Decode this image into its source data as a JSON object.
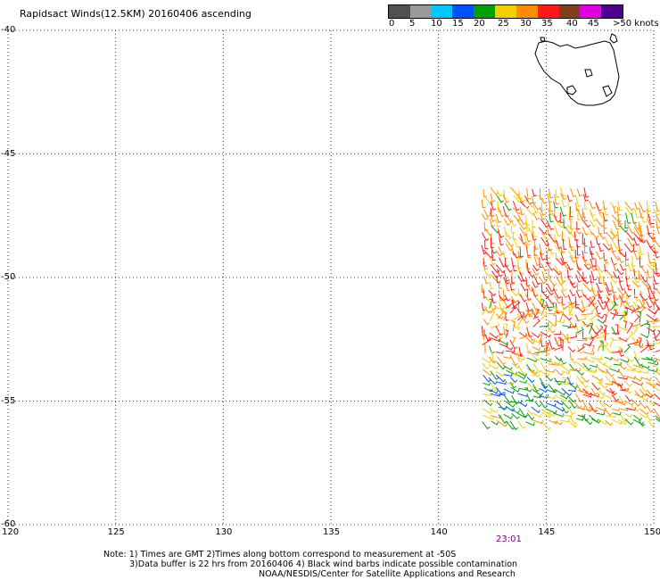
{
  "title": "Rapidsact Winds(12.5KM) 20160406 ascending",
  "legend": {
    "labels": [
      "0",
      "5",
      "10",
      "15",
      "20",
      "25",
      "30",
      "35",
      "40",
      "45",
      ">50 knots"
    ],
    "colors": [
      "#505050",
      "#9a9a9a",
      "#00c8ff",
      "#0050ff",
      "#00a000",
      "#f0d000",
      "#ff8c00",
      "#ff1a1a",
      "#804020",
      "#e000e0",
      "#500090"
    ]
  },
  "lat_labels": [
    "-40",
    "-45",
    "-50",
    "-55",
    "-60"
  ],
  "lon_labels": [
    "120",
    "125",
    "130",
    "135",
    "140",
    "145",
    "150"
  ],
  "time_label": "23:01",
  "notes": [
    "Note: 1) Times are GMT 2)Times along bottom correspond to measurement at -50S",
    "3)Data buffer is 22 hrs from 20160406 4) Black wind barbs indicate possible contamination",
    "NOAA/NESDIS/Center for Satellite Applications and Research"
  ],
  "map": {
    "lon_range": [
      120,
      150
    ],
    "lat_range": [
      -60,
      -40
    ],
    "grid": true
  }
}
